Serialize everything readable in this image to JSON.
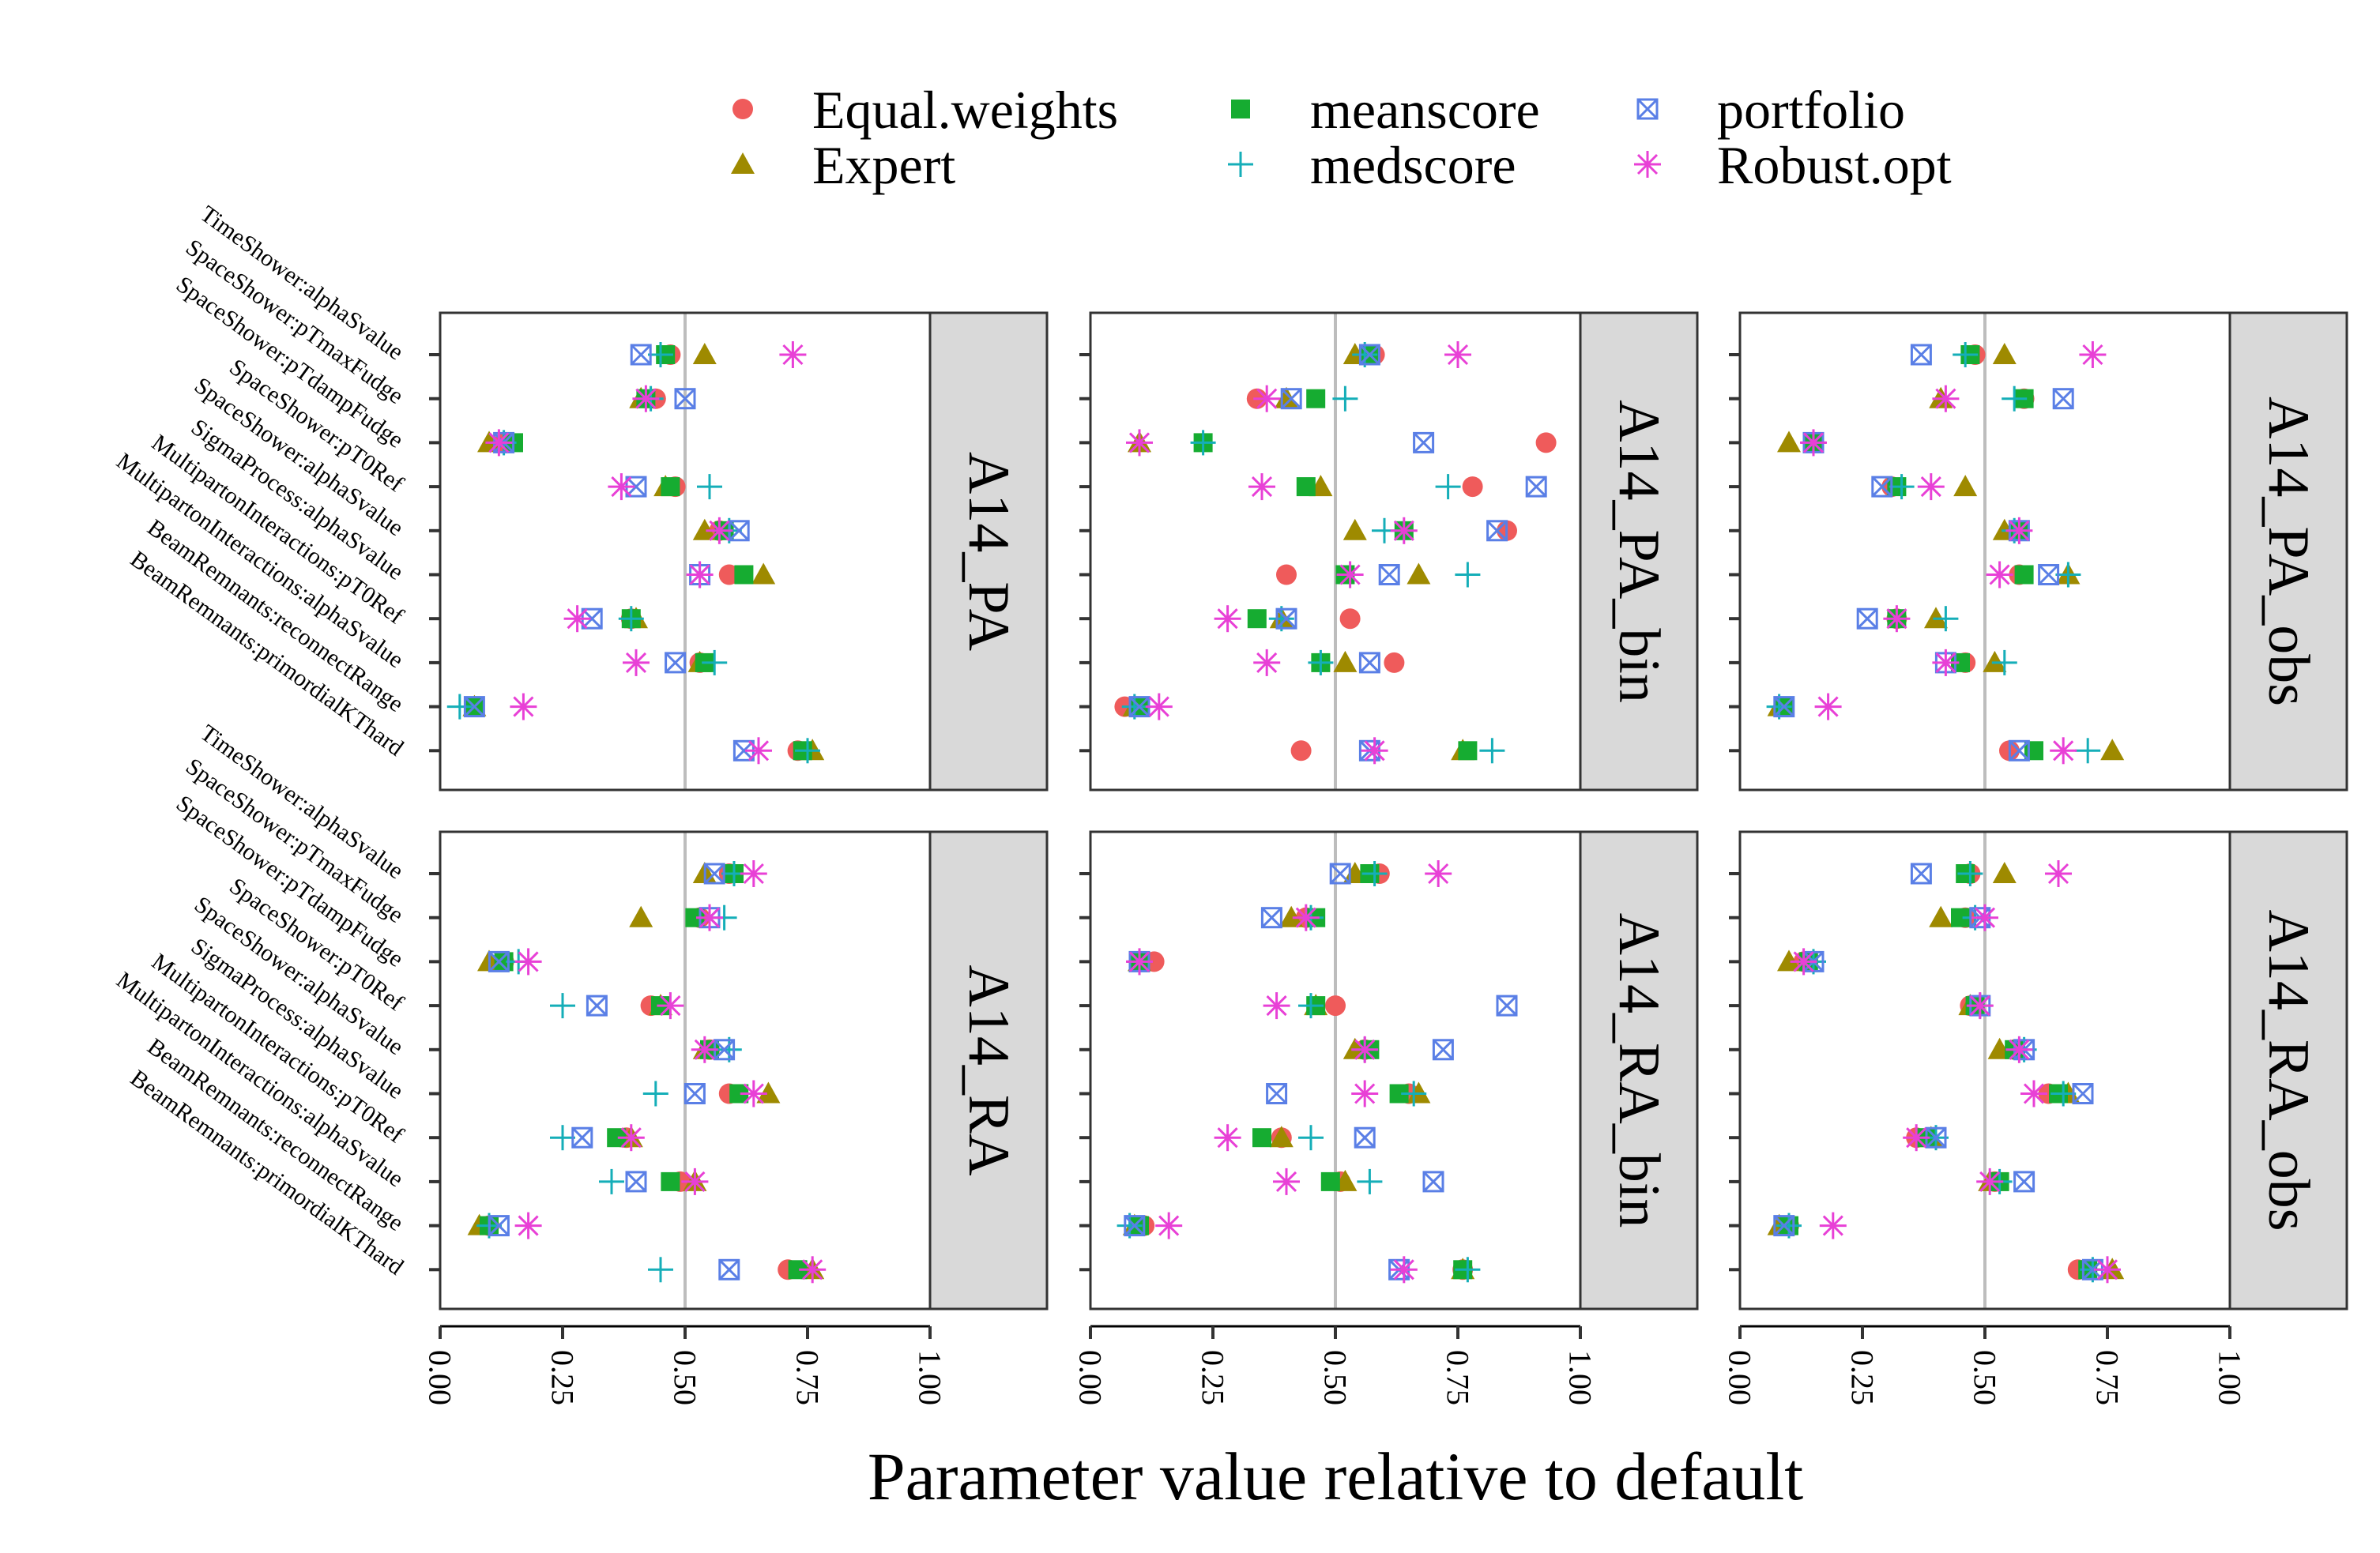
{
  "chart_data": {
    "type": "scatter",
    "xlabel": "Parameter value relative to default",
    "xlim": [
      0,
      1
    ],
    "xticks": [
      "0.00",
      "0.25",
      "0.50",
      "0.75",
      "1.00"
    ],
    "reference_line_x": 0.5,
    "parameters": [
      "TimeShower:alphaSvalue",
      "SpaceShower:pTmaxFudge",
      "SpaceShower:pTdampFudge",
      "SpaceShower:pT0Ref",
      "SpaceShower:alphaSvalue",
      "SigmaProcess:alphaSvalue",
      "MultipartonInteractions:pT0Ref",
      "MultipartonInteractions:alphaSvalue",
      "BeamRemnants:reconnectRange",
      "BeamRemnants:primordialKThard"
    ],
    "legend": [
      {
        "name": "Equal.weights",
        "marker": "circle",
        "color": "#ef5b5b"
      },
      {
        "name": "meanscore",
        "marker": "square",
        "color": "#16ac31"
      },
      {
        "name": "portfolio",
        "marker": "boxx",
        "color": "#5a7fe6"
      },
      {
        "name": "Expert",
        "marker": "triangle",
        "color": "#9e8a00"
      },
      {
        "name": "medscore",
        "marker": "plus",
        "color": "#15aeb8"
      },
      {
        "name": "Robust.opt",
        "marker": "asterisk",
        "color": "#e840d6"
      }
    ],
    "series_order": [
      "Equal.weights",
      "Expert",
      "meanscore",
      "medscore",
      "portfolio",
      "Robust.opt"
    ],
    "panels": [
      {
        "title": "A14_PA",
        "values": {
          "Equal.weights": [
            0.47,
            0.44,
            0.13,
            0.48,
            0.57,
            0.59,
            0.39,
            0.53,
            0.07,
            0.73
          ],
          "Expert": [
            0.54,
            0.41,
            0.1,
            0.46,
            0.54,
            0.66,
            0.4,
            0.53,
            0.07,
            0.76
          ],
          "meanscore": [
            0.46,
            0.42,
            0.15,
            0.47,
            0.58,
            0.62,
            0.39,
            0.54,
            0.07,
            0.74
          ],
          "medscore": [
            0.45,
            0.43,
            0.13,
            0.55,
            0.59,
            0.53,
            0.39,
            0.56,
            0.04,
            0.75
          ],
          "portfolio": [
            0.41,
            0.5,
            0.13,
            0.4,
            0.61,
            0.53,
            0.31,
            0.48,
            0.07,
            0.62
          ],
          "Robust.opt": [
            0.72,
            0.42,
            0.12,
            0.37,
            0.57,
            0.53,
            0.28,
            0.4,
            0.17,
            0.65
          ]
        }
      },
      {
        "title": "A14_PA_bin",
        "values": {
          "Equal.weights": [
            0.58,
            0.34,
            0.93,
            0.78,
            0.85,
            0.4,
            0.53,
            0.62,
            0.07,
            0.43
          ],
          "Expert": [
            0.54,
            0.4,
            0.1,
            0.47,
            0.54,
            0.67,
            0.39,
            0.52,
            0.09,
            0.76
          ],
          "meanscore": [
            0.57,
            0.46,
            0.23,
            0.44,
            0.64,
            0.52,
            0.34,
            0.47,
            0.1,
            0.77
          ],
          "medscore": [
            0.56,
            0.52,
            0.23,
            0.73,
            0.6,
            0.77,
            0.39,
            0.47,
            0.09,
            0.82
          ],
          "portfolio": [
            0.57,
            0.41,
            0.68,
            0.91,
            0.83,
            0.61,
            0.4,
            0.57,
            0.1,
            0.57
          ],
          "Robust.opt": [
            0.75,
            0.36,
            0.1,
            0.35,
            0.64,
            0.53,
            0.28,
            0.36,
            0.14,
            0.58
          ]
        }
      },
      {
        "title": "A14_PA_obs",
        "values": {
          "Equal.weights": [
            0.48,
            0.58,
            0.15,
            0.31,
            0.57,
            0.57,
            0.32,
            0.46,
            0.09,
            0.55
          ],
          "Expert": [
            0.54,
            0.41,
            0.1,
            0.46,
            0.54,
            0.67,
            0.4,
            0.52,
            0.08,
            0.76
          ],
          "meanscore": [
            0.47,
            0.58,
            0.15,
            0.32,
            0.57,
            0.58,
            0.32,
            0.45,
            0.09,
            0.6
          ],
          "medscore": [
            0.46,
            0.56,
            0.15,
            0.33,
            0.56,
            0.67,
            0.42,
            0.54,
            0.08,
            0.71
          ],
          "portfolio": [
            0.37,
            0.66,
            0.15,
            0.29,
            0.57,
            0.63,
            0.26,
            0.42,
            0.09,
            0.57
          ],
          "Robust.opt": [
            0.72,
            0.42,
            0.15,
            0.39,
            0.57,
            0.53,
            0.32,
            0.42,
            0.18,
            0.66
          ]
        }
      },
      {
        "title": "A14_RA",
        "values": {
          "Equal.weights": [
            0.59,
            0.53,
            0.13,
            0.43,
            0.55,
            0.59,
            0.38,
            0.49,
            0.1,
            0.71
          ],
          "Expert": [
            0.54,
            0.41,
            0.1,
            0.45,
            0.54,
            0.67,
            0.39,
            0.52,
            0.08,
            0.76
          ],
          "meanscore": [
            0.6,
            0.52,
            0.13,
            0.45,
            0.55,
            0.61,
            0.36,
            0.47,
            0.1,
            0.73
          ],
          "medscore": [
            0.6,
            0.58,
            0.16,
            0.25,
            0.59,
            0.44,
            0.25,
            0.35,
            0.1,
            0.45
          ],
          "portfolio": [
            0.56,
            0.55,
            0.12,
            0.32,
            0.58,
            0.52,
            0.29,
            0.4,
            0.12,
            0.59
          ],
          "Robust.opt": [
            0.64,
            0.55,
            0.18,
            0.47,
            0.54,
            0.64,
            0.39,
            0.52,
            0.18,
            0.76
          ]
        }
      },
      {
        "title": "A14_RA_bin",
        "values": {
          "Equal.weights": [
            0.59,
            0.44,
            0.13,
            0.5,
            0.56,
            0.65,
            0.39,
            0.51,
            0.11,
            0.76
          ],
          "Expert": [
            0.54,
            0.41,
            0.1,
            0.46,
            0.54,
            0.67,
            0.39,
            0.52,
            0.09,
            0.76
          ],
          "meanscore": [
            0.57,
            0.46,
            0.1,
            0.46,
            0.57,
            0.63,
            0.35,
            0.49,
            0.1,
            0.76
          ],
          "medscore": [
            0.58,
            0.45,
            0.1,
            0.45,
            0.56,
            0.66,
            0.45,
            0.57,
            0.08,
            0.77
          ],
          "portfolio": [
            0.51,
            0.37,
            0.1,
            0.85,
            0.72,
            0.38,
            0.56,
            0.7,
            0.09,
            0.63
          ],
          "Robust.opt": [
            0.71,
            0.44,
            0.1,
            0.38,
            0.56,
            0.56,
            0.28,
            0.4,
            0.16,
            0.64
          ]
        }
      },
      {
        "title": "A14_RA_obs",
        "values": {
          "Equal.weights": [
            0.47,
            0.46,
            0.13,
            0.47,
            0.56,
            0.63,
            0.36,
            0.52,
            0.1,
            0.69
          ],
          "Expert": [
            0.54,
            0.41,
            0.1,
            0.47,
            0.53,
            0.67,
            0.39,
            0.51,
            0.08,
            0.76
          ],
          "meanscore": [
            0.46,
            0.45,
            0.14,
            0.48,
            0.56,
            0.65,
            0.38,
            0.53,
            0.1,
            0.71
          ],
          "medscore": [
            0.47,
            0.48,
            0.15,
            0.49,
            0.58,
            0.66,
            0.4,
            0.53,
            0.1,
            0.72
          ],
          "portfolio": [
            0.37,
            0.49,
            0.15,
            0.49,
            0.58,
            0.7,
            0.4,
            0.58,
            0.09,
            0.72
          ],
          "Robust.opt": [
            0.65,
            0.5,
            0.13,
            0.49,
            0.57,
            0.6,
            0.36,
            0.51,
            0.19,
            0.75
          ]
        }
      }
    ]
  }
}
